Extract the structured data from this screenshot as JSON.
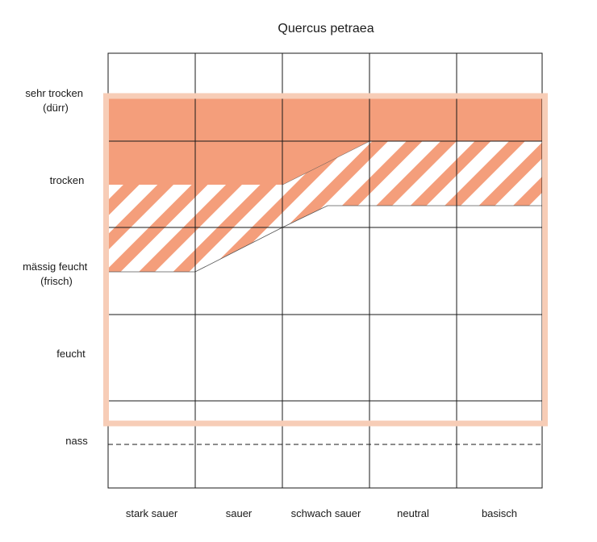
{
  "title": "Quercus petraea",
  "moisture_levels": [
    {
      "lines": [
        "sehr trocken",
        "(dürr)"
      ]
    },
    {
      "lines": [
        "trocken"
      ]
    },
    {
      "lines": [
        "mässig feucht",
        "(frisch)"
      ]
    },
    {
      "lines": [
        "feucht"
      ]
    },
    {
      "lines": [
        "nass"
      ]
    }
  ],
  "ph_levels": [
    "stark sauer",
    "sauer",
    "schwach sauer",
    "neutral",
    "basisch"
  ],
  "colors": {
    "optimum_fill": "#f49e7b",
    "hatch": "#f49e7b",
    "range_outline": "#f7cdb7",
    "grid": "#1a1a1a"
  }
}
